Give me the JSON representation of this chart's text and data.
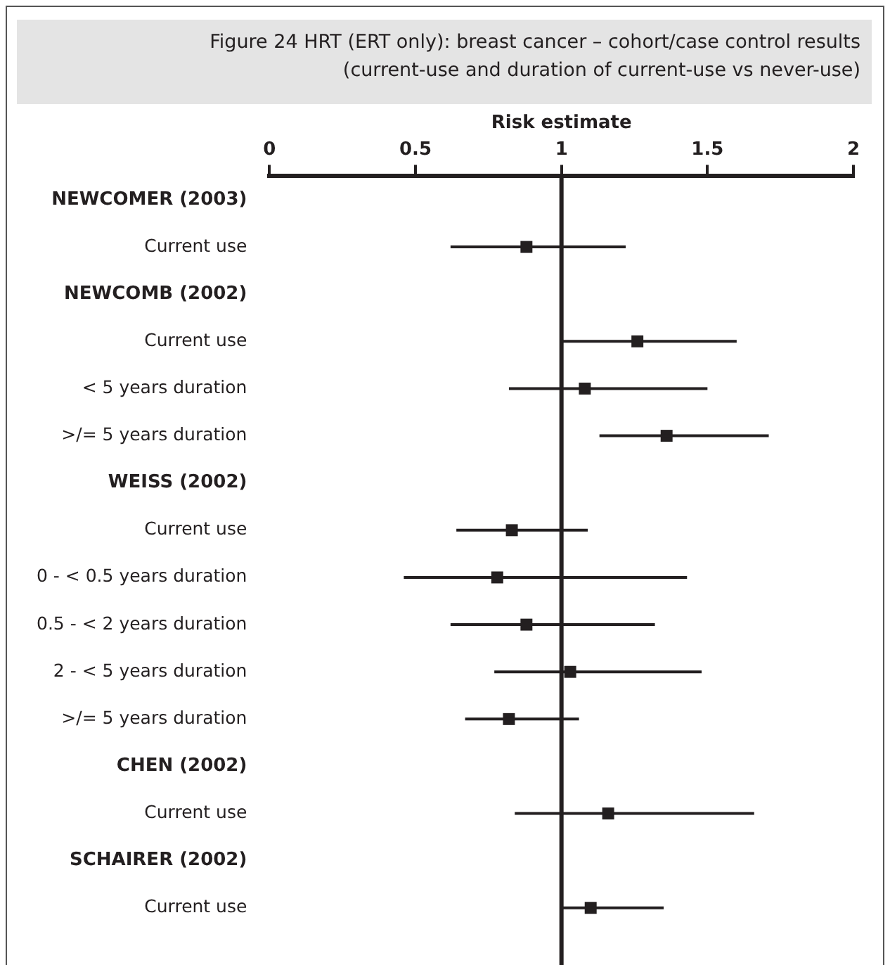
{
  "chart_data": {
    "type": "scatter",
    "orientation": "horizontal",
    "title": "Figure 24  HRT (ERT only): breast cancer – cohort/case control results",
    "subtitle": "(current-use and duration of current-use vs never-use)",
    "xlabel": "Risk estimate",
    "categories": [
      "NEWCOMER (2003)",
      "Current use",
      "NEWCOMB (2002)",
      "Current use",
      "< 5 years duration",
      ">/= 5 years duration",
      "WEISS (2002)",
      "Current use",
      "0 - < 0.5 years duration",
      "0.5 - < 2 years duration",
      "2 - < 5 years duration",
      ">/= 5 years duration",
      "CHEN (2002)",
      "Current use",
      "SCHAIRER (2002)",
      "Current use"
    ],
    "values": [
      null,
      0.88,
      null,
      1.26,
      1.08,
      1.36,
      null,
      0.83,
      0.78,
      0.88,
      1.03,
      0.82,
      null,
      1.16,
      null,
      1.1
    ],
    "errors": [
      null,
      [
        0.62,
        1.22
      ],
      null,
      [
        1.0,
        1.6
      ],
      [
        0.82,
        1.5
      ],
      [
        1.13,
        1.71
      ],
      null,
      [
        0.64,
        1.09
      ],
      [
        0.46,
        1.43
      ],
      [
        0.62,
        1.32
      ],
      [
        0.77,
        1.48
      ],
      [
        0.67,
        1.06
      ],
      null,
      [
        0.84,
        1.66
      ],
      null,
      [
        1.0,
        1.35
      ]
    ],
    "color": "#231f20",
    "marker": "square",
    "xlim": [
      0,
      2
    ],
    "xticks": [
      0,
      0.5,
      1,
      1.5,
      2
    ],
    "ref_lines": [
      {
        "axis": "x",
        "value": 1,
        "color": "#231f20"
      }
    ],
    "grid": false,
    "legend": false
  }
}
